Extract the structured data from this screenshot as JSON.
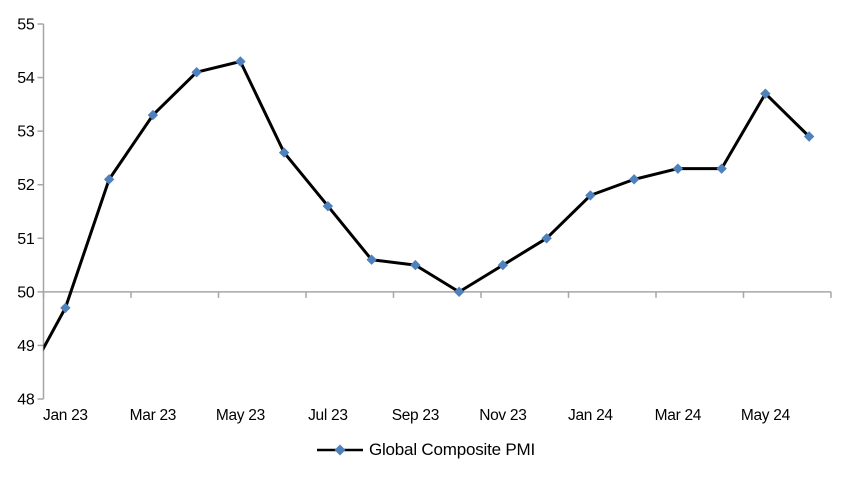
{
  "chart_data": {
    "type": "line",
    "title": "",
    "series": [
      {
        "name": "Global Composite PMI",
        "values": [
          49.7,
          52.1,
          53.3,
          54.1,
          54.3,
          52.6,
          51.6,
          50.6,
          50.5,
          50.0,
          50.5,
          51.0,
          51.8,
          52.1,
          52.3,
          52.3,
          53.7,
          52.9
        ]
      }
    ],
    "categories": [
      "Jan 23",
      "Feb 23",
      "Mar 23",
      "Apr 23",
      "May 23",
      "Jun 23",
      "Jul 23",
      "Aug 23",
      "Sep 23",
      "Oct 23",
      "Nov 23",
      "Dec 23",
      "Jan 24",
      "Feb 24",
      "Mar 24",
      "Apr 24",
      "May 24",
      "Jun 24"
    ],
    "clipped_leading_point": {
      "category": "Dec 22",
      "value": 48.2,
      "note": "point lies left of plot area; its line segment enters at the y-axis near 48.9"
    },
    "x_tick_labels": [
      "Jan 23",
      "Mar 23",
      "May 23",
      "Jul 23",
      "Sep 23",
      "Nov 23",
      "Jan 24",
      "Mar 24",
      "May 24"
    ],
    "x_tick_label_every_n_categories": 2,
    "y_tick_labels": [
      48,
      49,
      50,
      51,
      52,
      53,
      54,
      55
    ],
    "ylim": [
      48,
      55
    ],
    "xlabel": "",
    "ylabel": "",
    "category_axis_crosses_at": 50,
    "grid": "off (single horizontal category-axis line at 50 with downward tick marks)",
    "legend_position": "bottom-center",
    "marker_shape": "diamond",
    "colors": {
      "line": "#000000",
      "marker": "#4F81BD",
      "axis": "#A6A6A6",
      "text": "#000000",
      "background": "#FFFFFF"
    }
  }
}
